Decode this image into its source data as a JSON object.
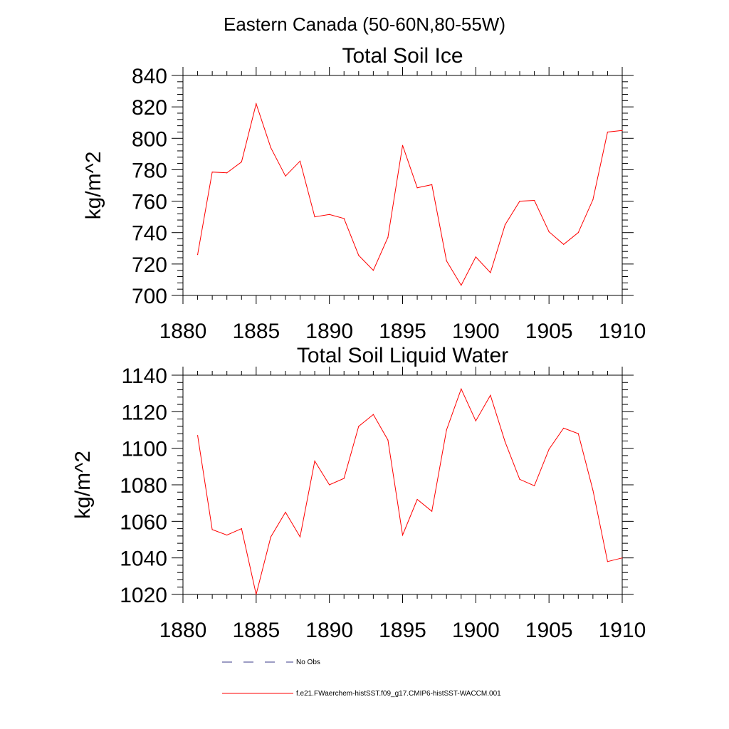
{
  "figure": {
    "title": "Eastern Canada (50-60N,80-55W)"
  },
  "chart_data": [
    {
      "type": "line",
      "title": "Total Soil Ice",
      "xlabel": "",
      "ylabel": "kg/m^2",
      "xlim": [
        1880,
        1910
      ],
      "ylim": [
        700,
        840
      ],
      "x_ticks": [
        1880,
        1885,
        1890,
        1895,
        1900,
        1905,
        1910
      ],
      "y_ticks": [
        700,
        720,
        740,
        760,
        780,
        800,
        820,
        840
      ],
      "grid": false,
      "x": [
        1881,
        1882,
        1883,
        1884,
        1885,
        1886,
        1887,
        1888,
        1889,
        1890,
        1891,
        1892,
        1893,
        1894,
        1895,
        1896,
        1897,
        1898,
        1899,
        1900,
        1901,
        1902,
        1903,
        1904,
        1905,
        1906,
        1907,
        1908,
        1909,
        1910
      ],
      "series": [
        {
          "name": "f.e21.FWaerchem-histSST.f09_g17.CMIP6-histSST-WACCM.001",
          "color": "#ff0000",
          "values": [
            726,
            778.5,
            778,
            785,
            822,
            794,
            776,
            785.5,
            750,
            751.5,
            749,
            725.5,
            716,
            737,
            795.5,
            768.5,
            770.5,
            722,
            706.5,
            724.5,
            714.5,
            745,
            760,
            760.5,
            740.5,
            732.5,
            740,
            761,
            804,
            805
          ]
        }
      ]
    },
    {
      "type": "line",
      "title": "Total Soil Liquid Water",
      "xlabel": "",
      "ylabel": "kg/m^2",
      "xlim": [
        1880,
        1910
      ],
      "ylim": [
        1020,
        1140
      ],
      "x_ticks": [
        1880,
        1885,
        1890,
        1895,
        1900,
        1905,
        1910
      ],
      "y_ticks": [
        1020,
        1040,
        1060,
        1080,
        1100,
        1120,
        1140
      ],
      "grid": false,
      "x": [
        1881,
        1882,
        1883,
        1884,
        1885,
        1886,
        1887,
        1888,
        1889,
        1890,
        1891,
        1892,
        1893,
        1894,
        1895,
        1896,
        1897,
        1898,
        1899,
        1900,
        1901,
        1902,
        1903,
        1904,
        1905,
        1906,
        1907,
        1908,
        1909,
        1910
      ],
      "series": [
        {
          "name": "f.e21.FWaerchem-histSST.f09_g17.CMIP6-histSST-WACCM.001",
          "color": "#ff0000",
          "values": [
            1107,
            1055.5,
            1052.5,
            1056,
            1020,
            1051.5,
            1065,
            1051.5,
            1093,
            1080,
            1083.5,
            1112,
            1118.5,
            1104.5,
            1052.5,
            1072,
            1065.5,
            1110,
            1132.5,
            1115,
            1129,
            1103.5,
            1083,
            1079.5,
            1099.5,
            1111,
            1108,
            1077,
            1038,
            1040
          ]
        }
      ]
    }
  ],
  "legend": {
    "items": [
      {
        "label": "No Obs",
        "color": "#3a3a8a",
        "style": "dashed"
      },
      {
        "label": "f.e21.FWaerchem-histSST.f09_g17.CMIP6-histSST-WACCM.001",
        "color": "#ff0000",
        "style": "solid"
      }
    ]
  }
}
